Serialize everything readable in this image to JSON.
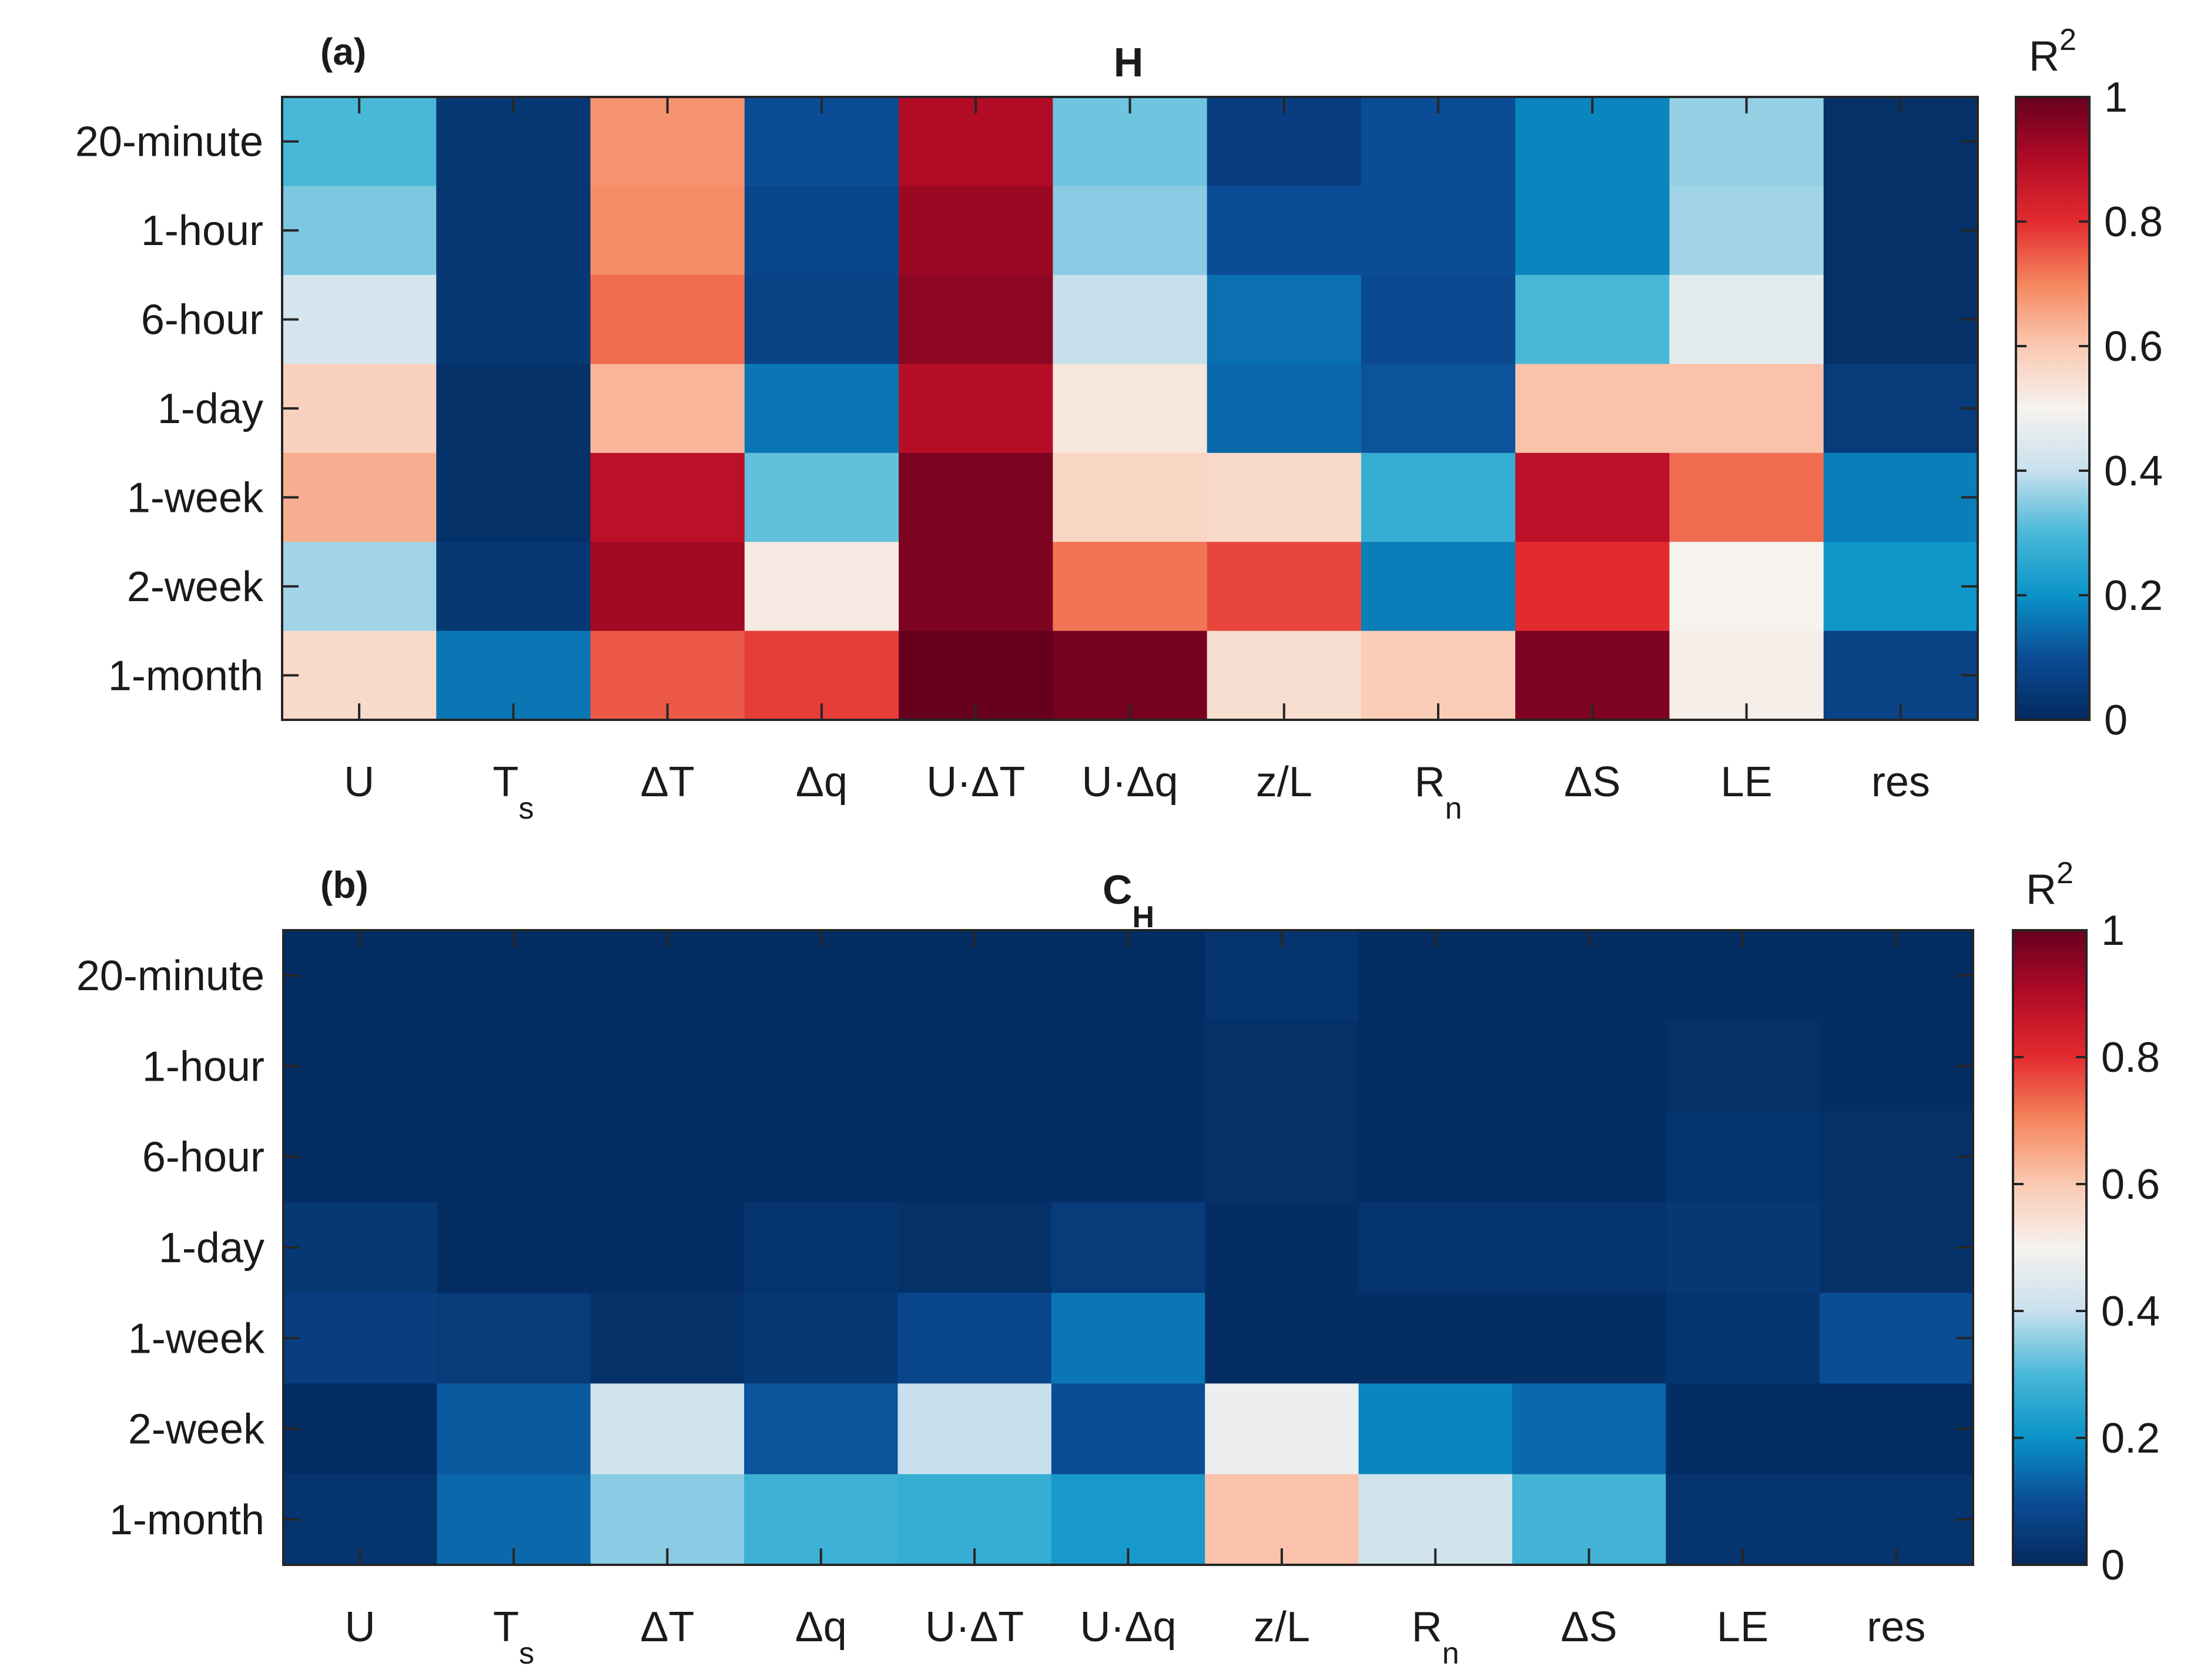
{
  "figure": {
    "rows": [
      "20-minute",
      "1-hour",
      "6-hour",
      "1-day",
      "1-week",
      "2-week",
      "1-month"
    ],
    "columns": [
      {
        "base": "U",
        "sub": ""
      },
      {
        "base": "T",
        "sub": "s"
      },
      {
        "base": "ΔT",
        "sub": ""
      },
      {
        "base": "Δq",
        "sub": ""
      },
      {
        "base": "U·ΔT",
        "sub": ""
      },
      {
        "base": "U·Δq",
        "sub": ""
      },
      {
        "base": "z/L",
        "sub": ""
      },
      {
        "base": "R",
        "sub": "n"
      },
      {
        "base": "ΔS",
        "sub": ""
      },
      {
        "base": "LE",
        "sub": ""
      },
      {
        "base": "res",
        "sub": ""
      }
    ],
    "colorbar": {
      "label": "R",
      "label_sup": "2",
      "ticks": [
        "0",
        "0.2",
        "0.4",
        "0.6",
        "0.8",
        "1"
      ],
      "range": [
        0,
        1
      ],
      "colors": [
        "#032a5e",
        "#0b4c96",
        "#0a93c8",
        "#49b8d8",
        "#c8e0ee",
        "#f6f2ee",
        "#fac9b2",
        "#f5865e",
        "#e32b2f",
        "#b10b26",
        "#67001f"
      ]
    }
  },
  "chart_data": [
    {
      "type": "heatmap",
      "panel_label": "(a)",
      "title": "H",
      "title_sub": "",
      "rows": [
        "20-minute",
        "1-hour",
        "6-hour",
        "1-day",
        "1-week",
        "2-week",
        "1-month"
      ],
      "columns": [
        "U",
        "Ts",
        "ΔT",
        "Δq",
        "U·ΔT",
        "U·Δq",
        "z/L",
        "Rn",
        "ΔS",
        "LE",
        "res"
      ],
      "values": [
        [
          0.3,
          0.04,
          0.68,
          0.1,
          0.9,
          0.33,
          0.06,
          0.1,
          0.18,
          0.36,
          0.02
        ],
        [
          0.34,
          0.04,
          0.69,
          0.08,
          0.93,
          0.35,
          0.1,
          0.1,
          0.18,
          0.37,
          0.02
        ],
        [
          0.43,
          0.04,
          0.73,
          0.07,
          0.95,
          0.4,
          0.15,
          0.09,
          0.3,
          0.46,
          0.02
        ],
        [
          0.58,
          0.02,
          0.63,
          0.16,
          0.89,
          0.53,
          0.14,
          0.11,
          0.61,
          0.61,
          0.05
        ],
        [
          0.64,
          0.02,
          0.88,
          0.32,
          0.97,
          0.57,
          0.56,
          0.27,
          0.88,
          0.73,
          0.17
        ],
        [
          0.37,
          0.04,
          0.92,
          0.52,
          0.97,
          0.72,
          0.77,
          0.17,
          0.8,
          0.5,
          0.21
        ],
        [
          0.56,
          0.16,
          0.75,
          0.78,
          1.0,
          0.98,
          0.55,
          0.59,
          0.97,
          0.51,
          0.07
        ]
      ],
      "colorbar_label": "R²",
      "clim": [
        0,
        1
      ]
    },
    {
      "type": "heatmap",
      "panel_label": "(b)",
      "title": "C",
      "title_sub": "H",
      "rows": [
        "20-minute",
        "1-hour",
        "6-hour",
        "1-day",
        "1-week",
        "2-week",
        "1-month"
      ],
      "columns": [
        "U",
        "Ts",
        "ΔT",
        "Δq",
        "U·ΔT",
        "U·Δq",
        "z/L",
        "Rn",
        "ΔS",
        "LE",
        "res"
      ],
      "values": [
        [
          0.01,
          0.01,
          0.01,
          0.01,
          0.01,
          0.01,
          0.03,
          0.01,
          0.01,
          0.01,
          0.01
        ],
        [
          0.01,
          0.01,
          0.01,
          0.01,
          0.01,
          0.01,
          0.02,
          0.01,
          0.01,
          0.02,
          0.01
        ],
        [
          0.01,
          0.01,
          0.01,
          0.01,
          0.01,
          0.01,
          0.02,
          0.01,
          0.01,
          0.03,
          0.02
        ],
        [
          0.04,
          0.01,
          0.01,
          0.03,
          0.02,
          0.05,
          0.01,
          0.03,
          0.03,
          0.04,
          0.02
        ],
        [
          0.06,
          0.05,
          0.02,
          0.04,
          0.08,
          0.16,
          0.01,
          0.01,
          0.01,
          0.03,
          0.1
        ],
        [
          0.01,
          0.12,
          0.42,
          0.11,
          0.4,
          0.1,
          0.48,
          0.18,
          0.14,
          0.01,
          0.01
        ],
        [
          0.03,
          0.14,
          0.35,
          0.28,
          0.27,
          0.22,
          0.61,
          0.42,
          0.29,
          0.03,
          0.03
        ]
      ],
      "colorbar_label": "R²",
      "clim": [
        0,
        1
      ]
    }
  ]
}
